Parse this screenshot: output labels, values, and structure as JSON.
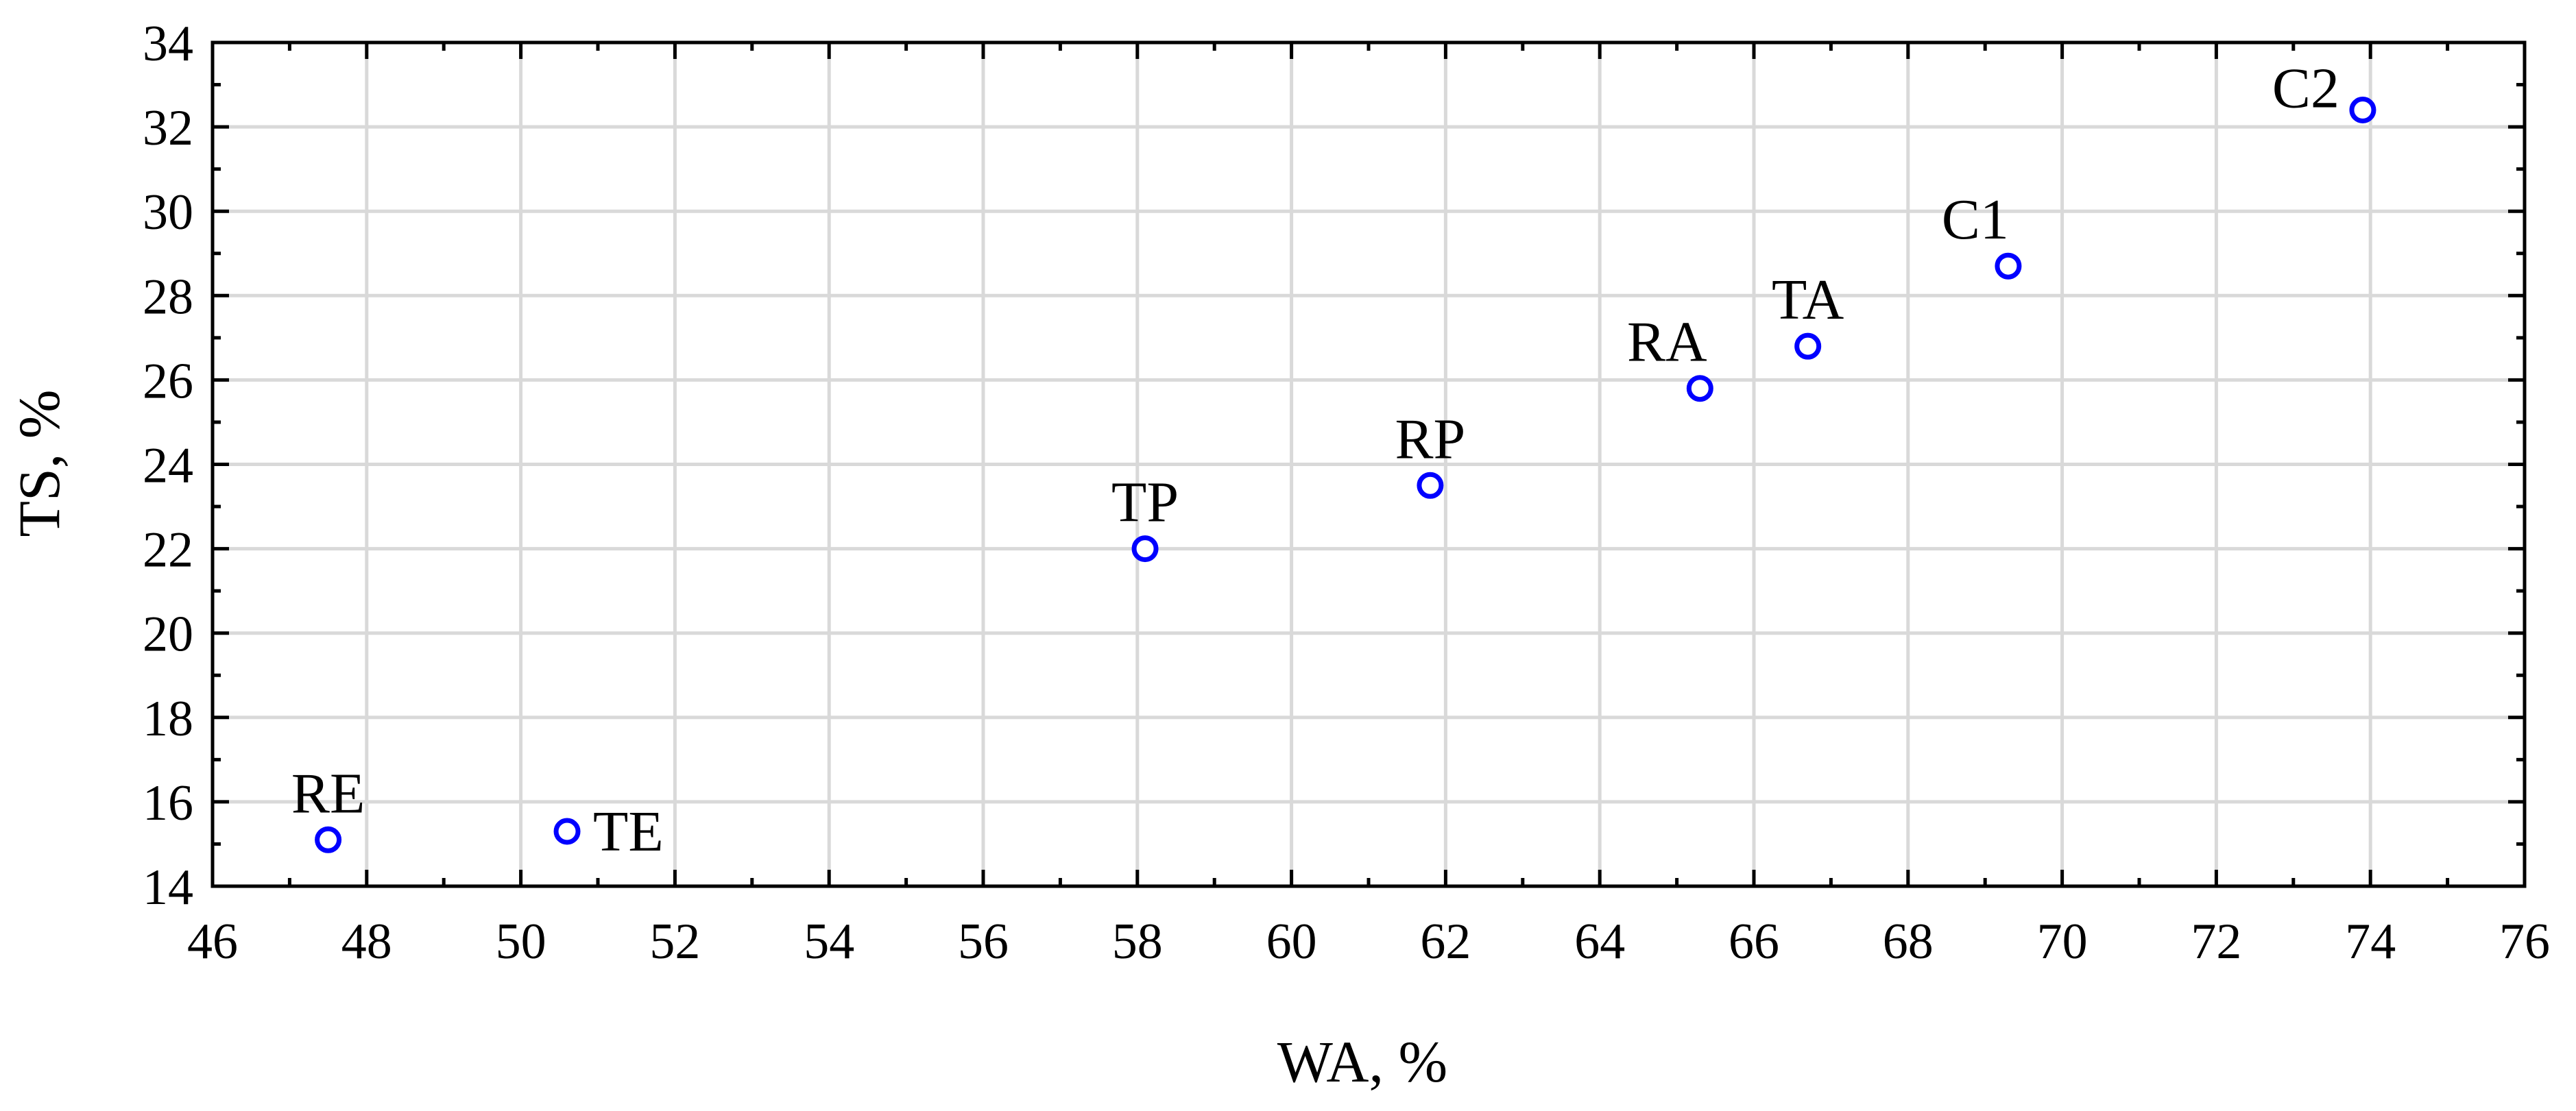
{
  "chart_data": {
    "type": "scatter",
    "xlabel": "WA, %",
    "ylabel": "TS, %",
    "xlim": [
      46,
      76
    ],
    "ylim": [
      14,
      34
    ],
    "x_ticks": [
      46,
      48,
      50,
      52,
      54,
      56,
      58,
      60,
      62,
      64,
      66,
      68,
      70,
      72,
      74,
      76
    ],
    "y_ticks": [
      14,
      16,
      18,
      20,
      22,
      24,
      26,
      28,
      30,
      32,
      34
    ],
    "grid": true,
    "marker": "open-circle",
    "colors": {
      "marker": "#0000ff",
      "grid": "#d9d9d9",
      "axes": "#000000"
    },
    "points": [
      {
        "label": "RE",
        "x": 47.5,
        "y": 15.1,
        "label_position": "above"
      },
      {
        "label": "TE",
        "x": 50.6,
        "y": 15.3,
        "label_position": "right"
      },
      {
        "label": "TP",
        "x": 58.1,
        "y": 22.0,
        "label_position": "above"
      },
      {
        "label": "RP",
        "x": 61.8,
        "y": 23.5,
        "label_position": "above"
      },
      {
        "label": "RA",
        "x": 65.3,
        "y": 25.8,
        "label_position": "above-left"
      },
      {
        "label": "TA",
        "x": 66.7,
        "y": 26.8,
        "label_position": "above"
      },
      {
        "label": "C1",
        "x": 69.3,
        "y": 28.7,
        "label_position": "above-left"
      },
      {
        "label": "C2",
        "x": 73.9,
        "y": 32.4,
        "label_position": "left"
      }
    ]
  }
}
